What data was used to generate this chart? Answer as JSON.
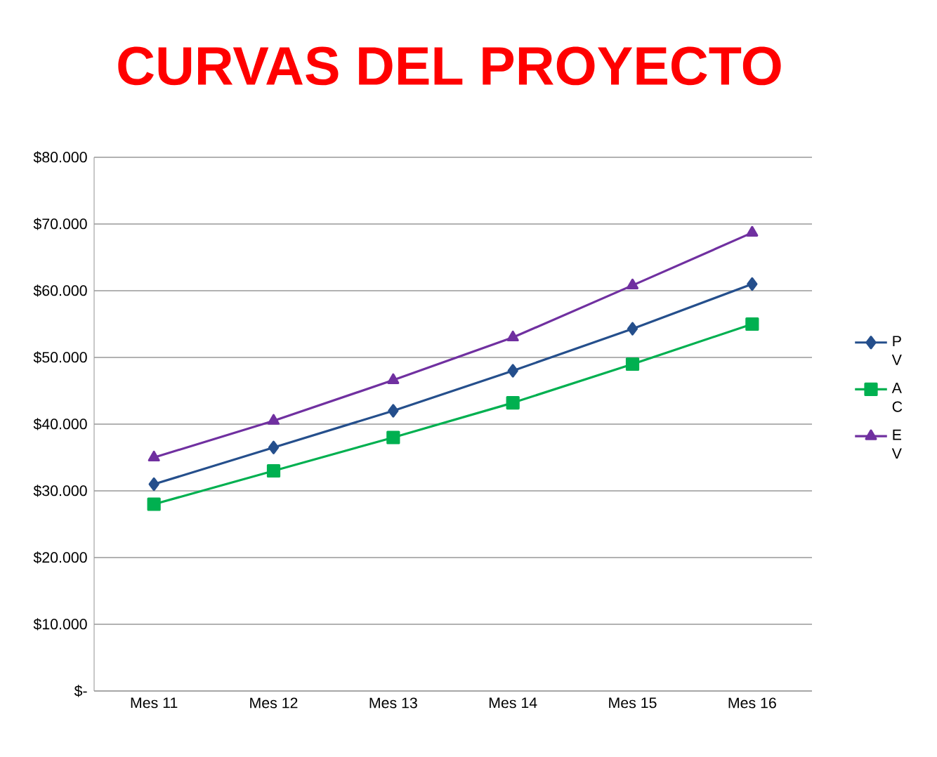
{
  "chart_data": {
    "type": "line",
    "title": "CURVAS DEL PROYECTO",
    "categories": [
      "Mes 11",
      "Mes 12",
      "Mes 13",
      "Mes 14",
      "Mes 15",
      "Mes 16"
    ],
    "series": [
      {
        "name": "P V",
        "color": "#254f8c",
        "marker": "diamond",
        "values": [
          31000,
          36500,
          42000,
          48000,
          54300,
          61000
        ]
      },
      {
        "name": "A C",
        "color": "#00b050",
        "marker": "square",
        "values": [
          28000,
          33000,
          38000,
          43200,
          49000,
          55000
        ]
      },
      {
        "name": "E V",
        "color": "#7030a0",
        "marker": "triangle",
        "values": [
          35000,
          40500,
          46600,
          53000,
          60800,
          68700
        ]
      }
    ],
    "ylim": [
      0,
      80000
    ],
    "yticks": [
      {
        "value": 0,
        "label": "$-"
      },
      {
        "value": 10000,
        "label": "$10.000"
      },
      {
        "value": 20000,
        "label": "$20.000"
      },
      {
        "value": 30000,
        "label": "$30.000"
      },
      {
        "value": 40000,
        "label": "$40.000"
      },
      {
        "value": 50000,
        "label": "$50.000"
      },
      {
        "value": 60000,
        "label": "$60.000"
      },
      {
        "value": 70000,
        "label": "$70.000"
      },
      {
        "value": 80000,
        "label": "$80.000"
      }
    ],
    "grid": "y",
    "legend": "right",
    "line_style": "solid"
  }
}
